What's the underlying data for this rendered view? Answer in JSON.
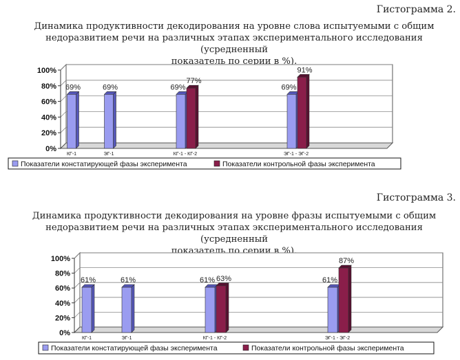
{
  "charts": [
    {
      "label": "Гистограмма 2.",
      "title_lines": [
        "Динамика продуктивности декодирования на уровне слова испытуемыми с общим",
        "недоразвитием речи на различных этапах экспериментального исследования (усредненный",
        "показатель по серии в %)."
      ]
    },
    {
      "label": "Гистограмма 3.",
      "title_lines": [
        "Динамика продуктивности декодирования на уровне фразы испытуемыми с общим",
        "недоразвитием речи на различных этапах экспериментального исследования (усредненный",
        "показатель по серии в %)."
      ]
    }
  ],
  "colors": {
    "series1": "#9a9cf0",
    "series1_dark": "#5557b8",
    "series2": "#8a1e4a",
    "series2_dark": "#571030",
    "axis": "#555555"
  },
  "chart_data": [
    {
      "type": "bar",
      "categories": [
        "КГ-1",
        "ЭГ-1",
        "КГ-1 - КГ-2",
        "ЭГ-1 - ЭГ-2"
      ],
      "y_tick_labels": [
        "0%",
        "20%",
        "40%",
        "60%",
        "80%",
        "100%"
      ],
      "ylim": [
        0,
        100
      ],
      "series": [
        {
          "name": "Показатели констатирующей фазы эксперимента",
          "values": [
            69,
            69,
            69,
            69
          ],
          "labels": [
            "69%",
            "69%",
            "69%",
            "69%"
          ]
        },
        {
          "name": "Показатели контрольной фазы эксперимента",
          "values": [
            null,
            null,
            77,
            91
          ],
          "labels": [
            "",
            "",
            "77%",
            "91%"
          ]
        }
      ],
      "legend": "bottom"
    },
    {
      "type": "bar",
      "categories": [
        "КГ-1",
        "ЭГ-1",
        "КГ-1 - КГ-2",
        "ЭГ-1 - ЭГ-2"
      ],
      "y_tick_labels": [
        "0%",
        "20%",
        "40%",
        "60%",
        "80%",
        "100%"
      ],
      "ylim": [
        0,
        100
      ],
      "series": [
        {
          "name": "Показатели констатирующей фазы эксперимента",
          "values": [
            61,
            61,
            61,
            61
          ],
          "labels": [
            "61%",
            "61%",
            "61%",
            "61%"
          ]
        },
        {
          "name": "Показатели контрольной фазы эксперимента",
          "values": [
            null,
            null,
            63,
            87
          ],
          "labels": [
            "",
            "",
            "63%",
            "87%"
          ]
        }
      ],
      "legend": "bottom"
    }
  ]
}
